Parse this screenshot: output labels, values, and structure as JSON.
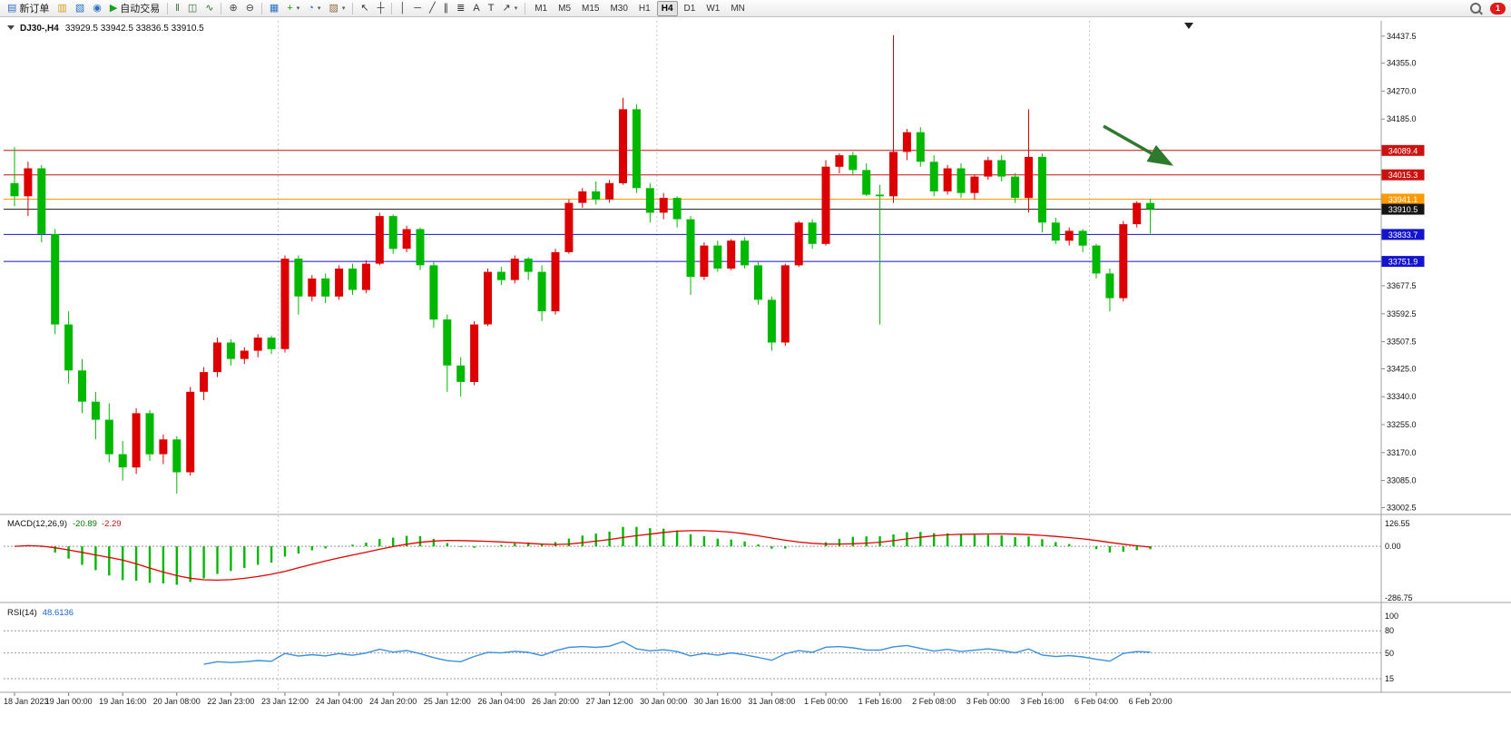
{
  "toolbar": {
    "items": [
      {
        "name": "new-order-button",
        "glyph": "▤",
        "glyph_color": "#2b6fc4",
        "label": "新订单"
      },
      {
        "name": "chart-window-icon",
        "glyph": "▥",
        "glyph_color": "#d4a017"
      },
      {
        "name": "profile-icon",
        "glyph": "▧",
        "glyph_color": "#2b6fc4"
      },
      {
        "name": "community-icon",
        "glyph": "◉",
        "glyph_color": "#2b6fc4"
      },
      {
        "name": "auto-trading-button",
        "glyph": "▶",
        "glyph_color": "#17a317",
        "label": "自动交易"
      },
      {
        "sep": true
      },
      {
        "name": "bar-chart-button",
        "glyph": "‖",
        "glyph_color": "#356b35"
      },
      {
        "name": "candlestick-chart-button",
        "glyph": "◫",
        "glyph_color": "#356b35"
      },
      {
        "name": "line-chart-button",
        "glyph": "∿",
        "glyph_color": "#356b35"
      },
      {
        "sep": true
      },
      {
        "name": "zoom-in-button",
        "glyph": "⊕",
        "glyph_color": "#444444"
      },
      {
        "name": "zoom-out-button",
        "glyph": "⊖",
        "glyph_color": "#444444"
      },
      {
        "sep": true
      },
      {
        "name": "tile-windows-button",
        "glyph": "▦",
        "glyph_color": "#2b6fc4"
      },
      {
        "name": "indicators-button",
        "glyph": "+",
        "glyph_color": "#17a317",
        "dropdown": true
      },
      {
        "name": "periods-button",
        "glyph": "◔",
        "glyph_color": "#2b6fc4",
        "dropdown": true
      },
      {
        "name": "template-button",
        "glyph": "▨",
        "glyph_color": "#8a6d3b",
        "dropdown": true
      },
      {
        "sep": true
      },
      {
        "name": "cursor-tool-button",
        "glyph": "↖",
        "glyph_color": "#333333"
      },
      {
        "name": "crosshair-tool-button",
        "glyph": "┼",
        "glyph_color": "#333333"
      },
      {
        "sep": true
      },
      {
        "name": "vertical-line-tool-button",
        "glyph": "│",
        "glyph_color": "#333333"
      },
      {
        "name": "horizontal-line-tool-button",
        "glyph": "─",
        "glyph_color": "#333333"
      },
      {
        "name": "trendline-tool-button",
        "glyph": "╱",
        "glyph_color": "#333333"
      },
      {
        "name": "channel-tool-button",
        "glyph": "∥",
        "glyph_color": "#333333"
      },
      {
        "name": "fibonacci-tool-button",
        "glyph": "≣",
        "glyph_color": "#333333"
      },
      {
        "name": "text-tool-button",
        "glyph": "A",
        "glyph_color": "#333333"
      },
      {
        "name": "label-tool-button",
        "glyph": "T",
        "glyph_color": "#333333"
      },
      {
        "name": "arrows-tool-button",
        "glyph": "↗",
        "glyph_color": "#333333",
        "dropdown": true
      },
      {
        "sep": true
      }
    ],
    "timeframes": [
      "M1",
      "M5",
      "M15",
      "M30",
      "H1",
      "H4",
      "D1",
      "W1",
      "MN"
    ],
    "active_timeframe": "H4",
    "notification_count": "1"
  },
  "chart_header": {
    "symbol": "DJ30-,H4",
    "ohlc": "33929.5 33942.5 33836.5 33910.5"
  },
  "indicators": {
    "macd": {
      "label": "MACD(12,26,9)",
      "value_main": "-20.89",
      "value_signal": "-2.29",
      "scale_max": "126.55",
      "scale_zero": "0.00",
      "scale_min": "-286.75"
    },
    "rsi": {
      "label": "RSI(14)",
      "value": "48.6136",
      "levels": [
        "100",
        "80",
        "50",
        "15"
      ]
    }
  },
  "axes": {
    "y_ticks": [
      {
        "label": "34437.5",
        "value": 34437.5
      },
      {
        "label": "34355.0",
        "value": 34355.0
      },
      {
        "label": "34270.0",
        "value": 34270.0
      },
      {
        "label": "34185.0",
        "value": 34185.0
      },
      {
        "label": "33677.5",
        "value": 33677.5
      },
      {
        "label": "33592.5",
        "value": 33592.5
      },
      {
        "label": "33507.5",
        "value": 33507.5
      },
      {
        "label": "33425.0",
        "value": 33425.0
      },
      {
        "label": "33340.0",
        "value": 33340.0
      },
      {
        "label": "33255.0",
        "value": 33255.0
      },
      {
        "label": "33170.0",
        "value": 33170.0
      },
      {
        "label": "33085.0",
        "value": 33085.0
      },
      {
        "label": "33002.5",
        "value": 33002.5
      }
    ]
  },
  "price_lines": [
    {
      "value": 34089.4,
      "label": "34089.4",
      "color": "#cc1111",
      "kind": "resistance"
    },
    {
      "value": 34015.3,
      "label": "34015.3",
      "color": "#cc1111",
      "kind": "resistance"
    },
    {
      "value": 33941.1,
      "label": "33941.1",
      "color": "#ff9900",
      "kind": "pivot"
    },
    {
      "value": 33910.5,
      "label": "33910.5",
      "color": "#141414",
      "kind": "current-price"
    },
    {
      "value": 33833.7,
      "label": "33833.7",
      "color": "#1414cc",
      "kind": "support"
    },
    {
      "value": 33751.9,
      "label": "33751.9",
      "color": "#1414cc",
      "kind": "support"
    }
  ],
  "colors": {
    "up_candle": "#dd0000",
    "down_candle": "#00b800",
    "macd_hist": "#00b800",
    "macd_signal": "#e60000",
    "rsi_line": "#3a8fe0",
    "arrow_annotation": "#2d7a2d",
    "grid_separator": "#c8c8c8",
    "panel_border": "#a0a0a0"
  },
  "chart_data": [
    {
      "type": "candlestick",
      "title": "DJ30-,H4",
      "timeframe": "H4",
      "ylim": [
        32990,
        34470
      ],
      "x_label_step": 4,
      "x_labels": [
        "18 Jan 2023",
        "19 Jan 00:00",
        "19 Jan 16:00",
        "20 Jan 08:00",
        "22 Jan 23:00",
        "23 Jan 12:00",
        "24 Jan 04:00",
        "24 Jan 20:00",
        "25 Jan 12:00",
        "26 Jan 04:00",
        "26 Jan 20:00",
        "27 Jan 12:00",
        "30 Jan 00:00",
        "30 Jan 16:00",
        "31 Jan 08:00",
        "1 Feb 00:00",
        "1 Feb 16:00",
        "2 Feb 08:00",
        "3 Feb 00:00",
        "3 Feb 16:00",
        "6 Feb 04:00",
        "6 Feb 20:00"
      ],
      "week_separator_bars": [
        20,
        48,
        80
      ],
      "ohlc": [
        [
          33990,
          34100,
          33920,
          33950
        ],
        [
          33950,
          34055,
          33890,
          34035
        ],
        [
          34035,
          34045,
          33810,
          33835
        ],
        [
          33835,
          33850,
          33530,
          33560
        ],
        [
          33560,
          33600,
          33380,
          33420
        ],
        [
          33420,
          33455,
          33290,
          33325
        ],
        [
          33325,
          33355,
          33210,
          33270
        ],
        [
          33270,
          33320,
          33140,
          33165
        ],
        [
          33165,
          33205,
          33085,
          33125
        ],
        [
          33125,
          33305,
          33105,
          33290
        ],
        [
          33290,
          33300,
          33145,
          33165
        ],
        [
          33165,
          33225,
          33135,
          33210
        ],
        [
          33210,
          33220,
          33045,
          33110
        ],
        [
          33110,
          33370,
          33100,
          33355
        ],
        [
          33355,
          33430,
          33330,
          33415
        ],
        [
          33415,
          33520,
          33400,
          33505
        ],
        [
          33505,
          33515,
          33435,
          33455
        ],
        [
          33455,
          33490,
          33440,
          33480
        ],
        [
          33480,
          33530,
          33460,
          33520
        ],
        [
          33520,
          33525,
          33470,
          33485
        ],
        [
          33485,
          33770,
          33475,
          33760
        ],
        [
          33760,
          33770,
          33590,
          33645
        ],
        [
          33645,
          33710,
          33630,
          33700
        ],
        [
          33700,
          33715,
          33625,
          33645
        ],
        [
          33645,
          33740,
          33635,
          33730
        ],
        [
          33730,
          33745,
          33650,
          33665
        ],
        [
          33665,
          33755,
          33655,
          33745
        ],
        [
          33745,
          33900,
          33740,
          33890
        ],
        [
          33890,
          33895,
          33775,
          33790
        ],
        [
          33790,
          33860,
          33780,
          33850
        ],
        [
          33850,
          33855,
          33725,
          33740
        ],
        [
          33740,
          33750,
          33550,
          33575
        ],
        [
          33575,
          33590,
          33355,
          33435
        ],
        [
          33435,
          33460,
          33340,
          33385
        ],
        [
          33385,
          33570,
          33375,
          33560
        ],
        [
          33560,
          33730,
          33555,
          33720
        ],
        [
          33720,
          33735,
          33680,
          33695
        ],
        [
          33695,
          33770,
          33685,
          33760
        ],
        [
          33760,
          33765,
          33695,
          33720
        ],
        [
          33720,
          33740,
          33570,
          33600
        ],
        [
          33600,
          33790,
          33590,
          33780
        ],
        [
          33780,
          33940,
          33775,
          33930
        ],
        [
          33930,
          33975,
          33915,
          33965
        ],
        [
          33965,
          33995,
          33925,
          33940
        ],
        [
          33940,
          34000,
          33930,
          33990
        ],
        [
          33990,
          34250,
          33985,
          34215
        ],
        [
          34215,
          34230,
          33960,
          33975
        ],
        [
          33975,
          33990,
          33870,
          33900
        ],
        [
          33900,
          33960,
          33880,
          33945
        ],
        [
          33945,
          33950,
          33855,
          33880
        ],
        [
          33880,
          33890,
          33650,
          33705
        ],
        [
          33705,
          33810,
          33695,
          33800
        ],
        [
          33800,
          33815,
          33720,
          33730
        ],
        [
          33730,
          33820,
          33725,
          33815
        ],
        [
          33815,
          33825,
          33730,
          33740
        ],
        [
          33740,
          33750,
          33620,
          33635
        ],
        [
          33635,
          33645,
          33480,
          33505
        ],
        [
          33505,
          33745,
          33495,
          33740
        ],
        [
          33740,
          33875,
          33735,
          33870
        ],
        [
          33870,
          33880,
          33790,
          33805
        ],
        [
          33805,
          34060,
          33800,
          34040
        ],
        [
          34040,
          34080,
          34020,
          34075
        ],
        [
          34075,
          34085,
          34015,
          34030
        ],
        [
          34030,
          34050,
          33950,
          33955
        ],
        [
          33955,
          33985,
          33560,
          33950
        ],
        [
          33950,
          34440,
          33930,
          34085
        ],
        [
          34085,
          34155,
          34060,
          34145
        ],
        [
          34145,
          34160,
          34040,
          34055
        ],
        [
          34055,
          34075,
          33950,
          33965
        ],
        [
          33965,
          34045,
          33955,
          34035
        ],
        [
          34035,
          34050,
          33945,
          33960
        ],
        [
          33960,
          34015,
          33940,
          34010
        ],
        [
          34010,
          34070,
          34000,
          34060
        ],
        [
          34060,
          34075,
          33995,
          34010
        ],
        [
          34010,
          34020,
          33930,
          33945
        ],
        [
          33945,
          34215,
          33900,
          34070
        ],
        [
          34070,
          34080,
          33840,
          33870
        ],
        [
          33870,
          33885,
          33805,
          33815
        ],
        [
          33815,
          33855,
          33800,
          33845
        ],
        [
          33845,
          33850,
          33780,
          33800
        ],
        [
          33800,
          33805,
          33700,
          33715
        ],
        [
          33715,
          33730,
          33600,
          33640
        ],
        [
          33640,
          33875,
          33630,
          33865
        ],
        [
          33865,
          33935,
          33855,
          33930
        ],
        [
          33929.5,
          33942.5,
          33836.5,
          33910.5
        ]
      ]
    },
    {
      "type": "bar",
      "name": "MACD(12,26,9)",
      "params": {
        "fast": 12,
        "slow": 26,
        "signal": 9
      },
      "ylim": [
        -286.75,
        126.55
      ],
      "last_values": {
        "macd": -20.89,
        "signal": -2.29
      }
    },
    {
      "type": "line",
      "name": "RSI(14)",
      "params": {
        "period": 14
      },
      "ylim": [
        15,
        100
      ],
      "levels": [
        80,
        50,
        15
      ],
      "last_value": 48.6136
    }
  ]
}
